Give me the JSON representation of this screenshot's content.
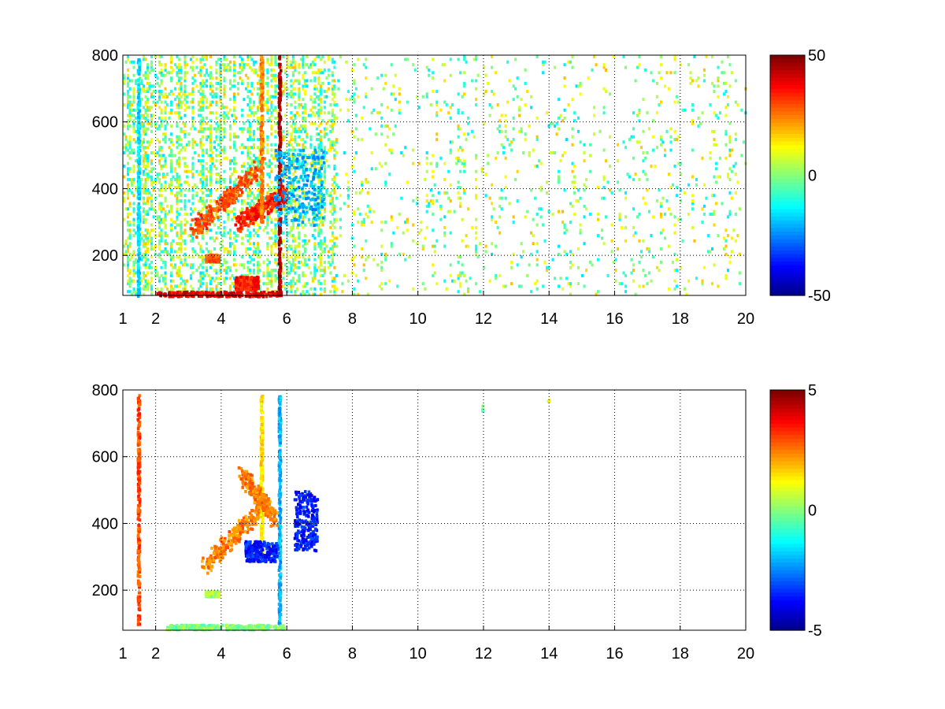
{
  "chart_data": [
    {
      "type": "heatmap",
      "title": "",
      "xlabel": "",
      "ylabel": "",
      "xlim": [
        1,
        20
      ],
      "ylim": [
        80,
        800
      ],
      "x_ticks": [
        1,
        2,
        4,
        6,
        8,
        10,
        12,
        14,
        16,
        18,
        20
      ],
      "y_ticks": [
        200,
        400,
        600,
        800
      ],
      "grid": true,
      "colormap": "jet",
      "colorbar": {
        "min": -50,
        "max": 50,
        "ticks": [
          50,
          0,
          -50
        ]
      },
      "features": [
        {
          "shape": "band",
          "x": [
            3.1,
            5.2
          ],
          "y": [
            280,
            470
          ],
          "value": 30
        },
        {
          "shape": "band",
          "x": [
            4.5,
            5.9
          ],
          "y": [
            300,
            390
          ],
          "value": 35
        },
        {
          "shape": "vertical",
          "x": 5.2,
          "y": [
            300,
            800
          ],
          "value": 25
        },
        {
          "shape": "vertical",
          "x": 5.75,
          "y": [
            80,
            800
          ],
          "value": 45
        },
        {
          "shape": "blob",
          "x": [
            5.6,
            7.1
          ],
          "y": [
            290,
            520
          ],
          "value": -20
        },
        {
          "shape": "horizontal",
          "x": [
            2.0,
            5.8
          ],
          "y": 85,
          "value": 40
        },
        {
          "shape": "blob",
          "x": [
            4.4,
            5.1
          ],
          "y": [
            100,
            140
          ],
          "value": 35
        },
        {
          "shape": "blob",
          "x": [
            3.5,
            3.9
          ],
          "y": [
            185,
            205
          ],
          "value": 30
        },
        {
          "shape": "vertical",
          "x": 1.45,
          "y": [
            80,
            800
          ],
          "value": -15
        }
      ]
    },
    {
      "type": "heatmap",
      "title": "",
      "xlabel": "",
      "ylabel": "",
      "xlim": [
        1,
        20
      ],
      "ylim": [
        80,
        800
      ],
      "x_ticks": [
        1,
        2,
        4,
        6,
        8,
        10,
        12,
        14,
        16,
        18,
        20
      ],
      "y_ticks": [
        200,
        400,
        600,
        800
      ],
      "grid": true,
      "colormap": "jet",
      "colorbar": {
        "min": -5,
        "max": 5,
        "ticks": [
          5,
          0,
          -5
        ]
      },
      "features": [
        {
          "shape": "band",
          "x": [
            3.4,
            5.3
          ],
          "y": [
            270,
            460
          ],
          "value": 2.5
        },
        {
          "shape": "vertical",
          "x": 5.2,
          "y": [
            300,
            790
          ],
          "value": 1.5
        },
        {
          "shape": "vertical",
          "x": 5.75,
          "y": [
            100,
            790
          ],
          "value": -2
        },
        {
          "shape": "band",
          "x": [
            4.6,
            5.6
          ],
          "y": [
            550,
            420
          ],
          "value": 2.5
        },
        {
          "shape": "blob",
          "x": [
            4.7,
            5.7
          ],
          "y": [
            290,
            350
          ],
          "value": -3.5
        },
        {
          "shape": "blob",
          "x": [
            6.2,
            6.9
          ],
          "y": [
            320,
            500
          ],
          "value": -3.5
        },
        {
          "shape": "horizontal",
          "x": [
            2.3,
            5.9
          ],
          "y": 90,
          "value": 0
        },
        {
          "shape": "blob",
          "x": [
            3.5,
            3.9
          ],
          "y": [
            185,
            200
          ],
          "value": 0.3
        },
        {
          "shape": "vertical",
          "x": 1.45,
          "y": [
            100,
            790
          ],
          "value": 3
        },
        {
          "shape": "point",
          "x": 11.95,
          "y": 750,
          "value": -0.5
        },
        {
          "shape": "point",
          "x": 13.95,
          "y": 765,
          "value": 1
        }
      ]
    }
  ]
}
